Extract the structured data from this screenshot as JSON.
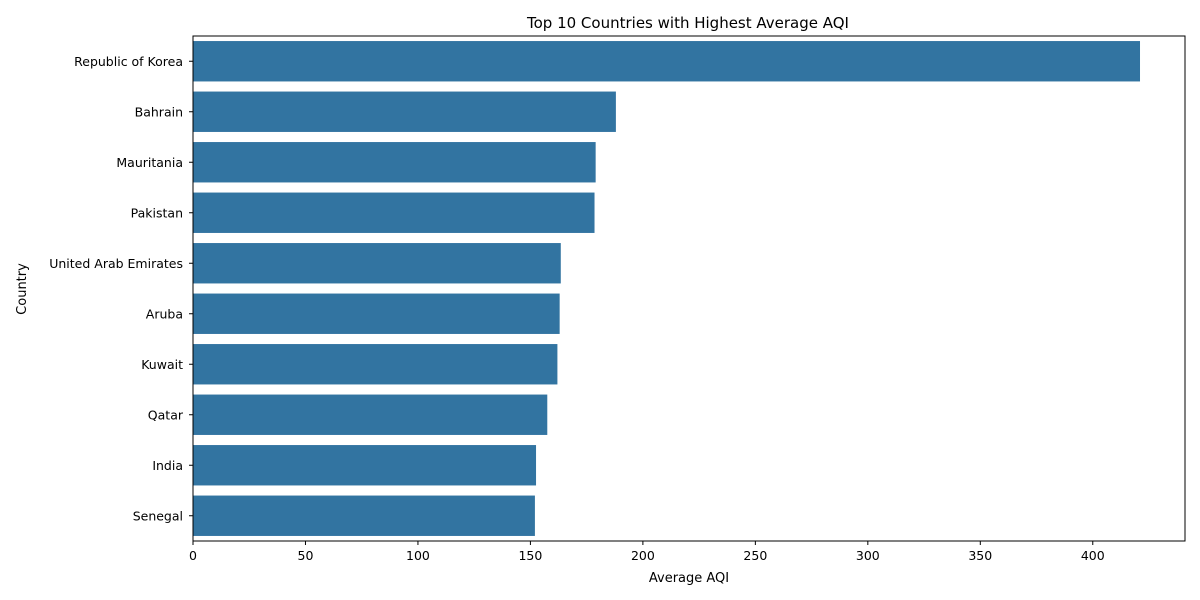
{
  "chart_data": {
    "type": "bar",
    "orientation": "horizontal",
    "title": "Top 10 Countries with Highest Average AQI",
    "xlabel": "Average AQI",
    "ylabel": "Country",
    "categories": [
      "Republic of Korea",
      "Bahrain",
      "Mauritania",
      "Pakistan",
      "United Arab Emirates",
      "Aruba",
      "Kuwait",
      "Qatar",
      "India",
      "Senegal"
    ],
    "values": [
      421,
      188,
      179,
      178.5,
      163.5,
      163,
      162,
      157.5,
      152.5,
      152
    ],
    "xlim": [
      0,
      441
    ],
    "xticks": [
      0,
      50,
      100,
      150,
      200,
      250,
      300,
      350,
      400
    ],
    "bar_color": "#3274a1",
    "grid": false,
    "legend": "none"
  }
}
